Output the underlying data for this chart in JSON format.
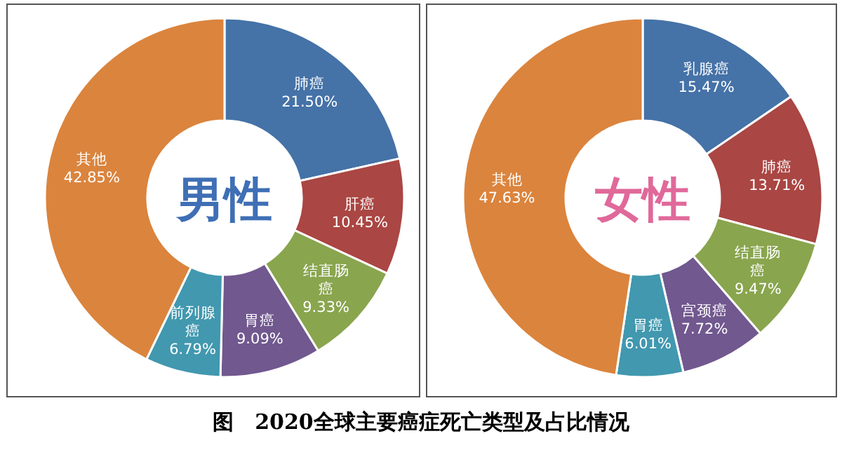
{
  "chart_data": [
    {
      "type": "donut",
      "categories": [
        "肺癌",
        "肝癌",
        "结直肠癌",
        "胃癌",
        "前列腺癌",
        "其他"
      ],
      "values": [
        21.5,
        10.45,
        9.33,
        9.09,
        6.79,
        42.85
      ],
      "value_labels": [
        "21.50%",
        "10.45%",
        "9.33%",
        "9.09%",
        "6.79%",
        "42.85%"
      ],
      "colors": [
        "#4572a7",
        "#aa4643",
        "#89a54e",
        "#71588f",
        "#4198af",
        "#db843d"
      ],
      "annotations": [
        "男性",
        "图　2020全球主要癌症死亡类型及占比情况"
      ]
    },
    {
      "type": "donut",
      "categories": [
        "乳腺癌",
        "肺癌",
        "结直肠癌",
        "宫颈癌",
        "胃癌",
        "其他"
      ],
      "values": [
        15.47,
        13.71,
        9.47,
        7.72,
        6.01,
        47.63
      ],
      "value_labels": [
        "15.47%",
        "13.71%",
        "9.47%",
        "7.72%",
        "6.01%",
        "47.63%"
      ],
      "colors": [
        "#4572a7",
        "#aa4643",
        "#89a54e",
        "#71588f",
        "#4198af",
        "#db843d"
      ],
      "annotations": [
        "女性"
      ]
    }
  ]
}
